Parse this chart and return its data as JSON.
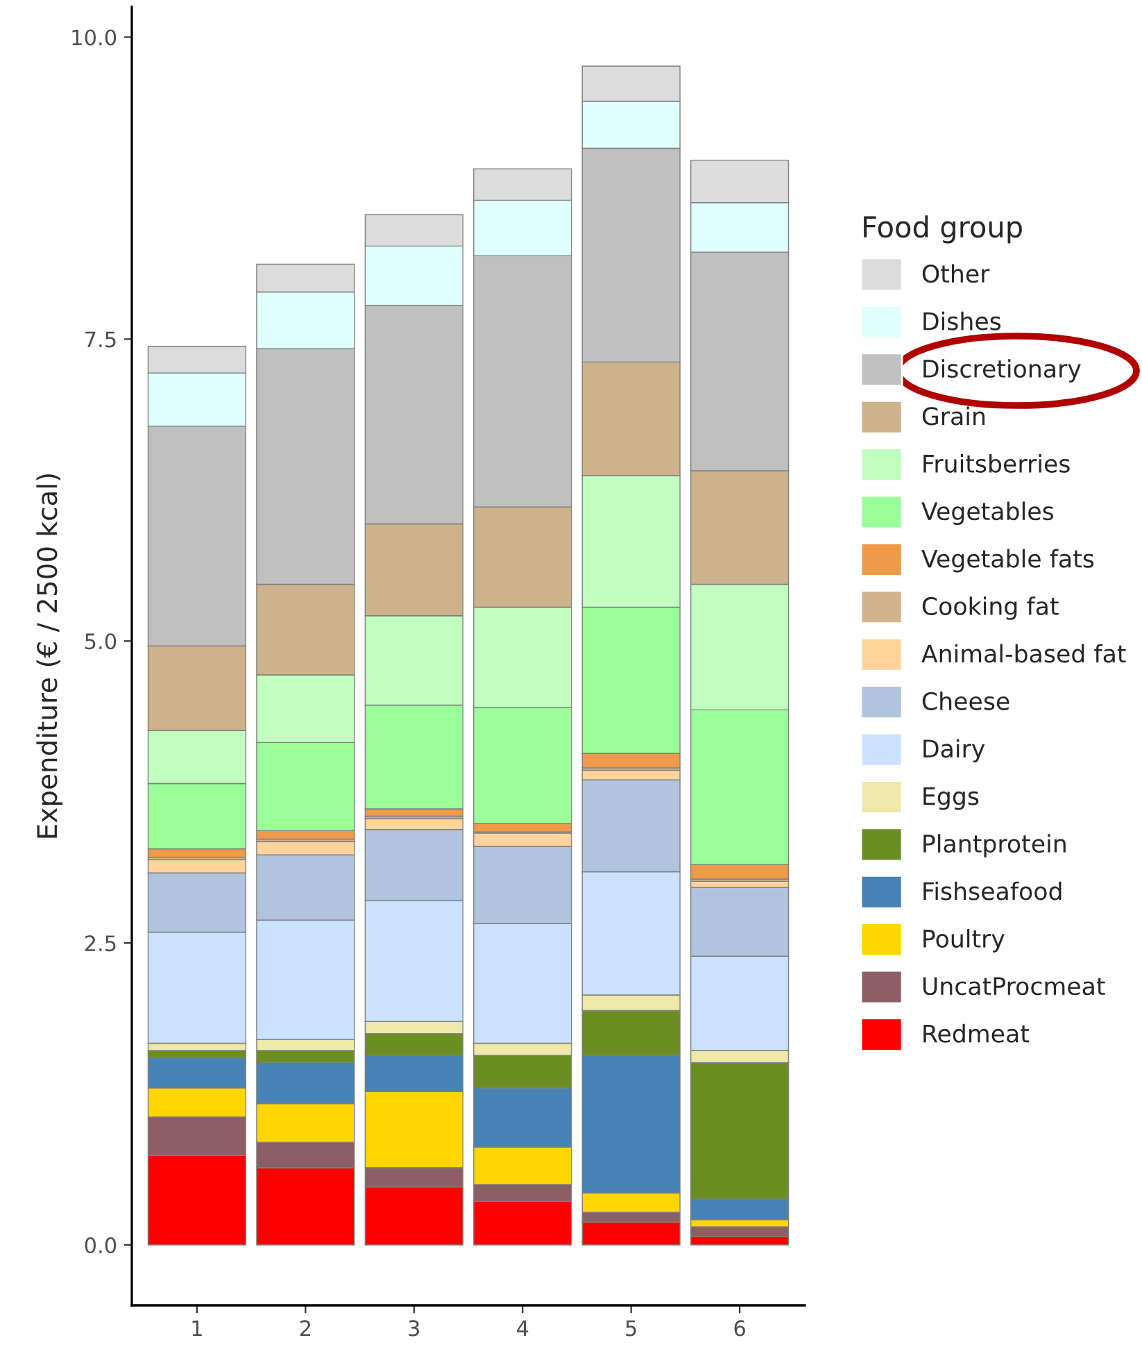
{
  "chart_data": {
    "type": "bar",
    "stacked": true,
    "ylabel": "Expenditure (€ / 2500 kcal)",
    "legend_title": "Food group",
    "legend": "right",
    "categories": [
      "1",
      "2",
      "3",
      "4",
      "5",
      "6"
    ],
    "ylim": [
      -0.5,
      10.25
    ],
    "yticks": [
      {
        "value": 0,
        "label": "0.0"
      },
      {
        "value": 2.5,
        "label": "2.5"
      },
      {
        "value": 5,
        "label": "5.0"
      },
      {
        "value": 7.5,
        "label": "7.5"
      },
      {
        "value": 10,
        "label": "10.0"
      }
    ],
    "grid": false,
    "series": [
      {
        "name": "Redmeat",
        "color": "#ff0000",
        "values": [
          0.74,
          0.64,
          0.48,
          0.36,
          0.19,
          0.07
        ]
      },
      {
        "name": "UncatProcmeat",
        "color": "#8b5f65",
        "values": [
          0.32,
          0.21,
          0.16,
          0.14,
          0.08,
          0.08
        ]
      },
      {
        "name": "Poultry",
        "color": "#ffd700",
        "values": [
          0.24,
          0.32,
          0.63,
          0.31,
          0.16,
          0.06
        ]
      },
      {
        "name": "Fishseafood",
        "color": "#4682b4",
        "values": [
          0.25,
          0.34,
          0.3,
          0.49,
          1.14,
          0.17
        ]
      },
      {
        "name": "Plantprotein",
        "color": "#6b8e23",
        "values": [
          0.06,
          0.1,
          0.18,
          0.27,
          0.37,
          1.13
        ]
      },
      {
        "name": "Eggs",
        "color": "#eee8aa",
        "values": [
          0.06,
          0.09,
          0.1,
          0.1,
          0.13,
          0.1
        ]
      },
      {
        "name": "Dairy",
        "color": "#cae1ff",
        "values": [
          0.92,
          0.99,
          1.0,
          0.99,
          1.02,
          0.78
        ]
      },
      {
        "name": "Cheese",
        "color": "#b0c4de",
        "values": [
          0.49,
          0.54,
          0.59,
          0.64,
          0.76,
          0.57
        ]
      },
      {
        "name": "Animal-based fat",
        "color": "#ffd39b",
        "values": [
          0.11,
          0.11,
          0.09,
          0.11,
          0.08,
          0.05
        ]
      },
      {
        "name": "Cooking fat",
        "color": "#d2b48c",
        "values": [
          0.02,
          0.02,
          0.02,
          0.01,
          0.02,
          0.02
        ]
      },
      {
        "name": "Vegetable fats",
        "color": "#ee9a49",
        "values": [
          0.07,
          0.07,
          0.06,
          0.07,
          0.12,
          0.12
        ]
      },
      {
        "name": "Vegetables",
        "color": "#9aff9a",
        "values": [
          0.54,
          0.73,
          0.86,
          0.96,
          1.21,
          1.28
        ]
      },
      {
        "name": "Fruitsberries",
        "color": "#c1ffc1",
        "values": [
          0.44,
          0.56,
          0.74,
          0.83,
          1.09,
          1.04
        ]
      },
      {
        "name": "Grain",
        "color": "#cdb38b",
        "values": [
          0.7,
          0.75,
          0.76,
          0.83,
          0.94,
          0.94
        ]
      },
      {
        "name": "Discretionary",
        "color": "#c0c0c0",
        "values": [
          1.82,
          1.95,
          1.81,
          2.08,
          1.77,
          1.81
        ]
      },
      {
        "name": "Dishes",
        "color": "#e0ffff",
        "values": [
          0.44,
          0.47,
          0.49,
          0.46,
          0.39,
          0.41
        ]
      },
      {
        "name": "Other",
        "color": "#dcdcdc",
        "values": [
          0.22,
          0.23,
          0.26,
          0.26,
          0.29,
          0.35
        ]
      }
    ]
  }
}
